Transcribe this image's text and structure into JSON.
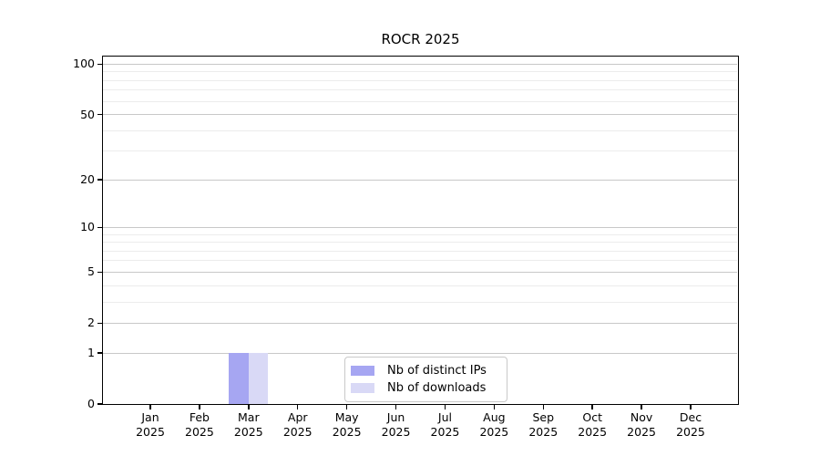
{
  "chart_data": {
    "type": "bar",
    "title": "ROCR 2025",
    "categories": [
      "Jan",
      "Feb",
      "Mar",
      "Apr",
      "May",
      "Jun",
      "Jul",
      "Aug",
      "Sep",
      "Oct",
      "Nov",
      "Dec"
    ],
    "category_year": "2025",
    "series": [
      {
        "name": "Nb of distinct IPs",
        "color": "#a6a6f2",
        "values": [
          0,
          0,
          1,
          0,
          0,
          0,
          0,
          0,
          0,
          0,
          0,
          0
        ]
      },
      {
        "name": "Nb of downloads",
        "color": "#d9d9f6",
        "values": [
          0,
          0,
          1,
          0,
          0,
          0,
          0,
          0,
          0,
          0,
          0,
          0
        ]
      }
    ],
    "yscale": "log1p",
    "ylabel": "",
    "xlabel": "",
    "y_major_ticks": [
      0,
      1,
      2,
      5,
      10,
      20,
      50,
      100
    ],
    "y_minor_ticks": [
      3,
      4,
      6,
      7,
      8,
      9,
      30,
      40,
      60,
      70,
      80,
      90
    ],
    "ylim": [
      0,
      111
    ],
    "grid": "horizontal",
    "legend_position": "bottom-center",
    "colors": {
      "major_grid": "#c8c8c8",
      "minor_grid": "#ececec",
      "axis": "#000000",
      "background": "#ffffff"
    }
  }
}
